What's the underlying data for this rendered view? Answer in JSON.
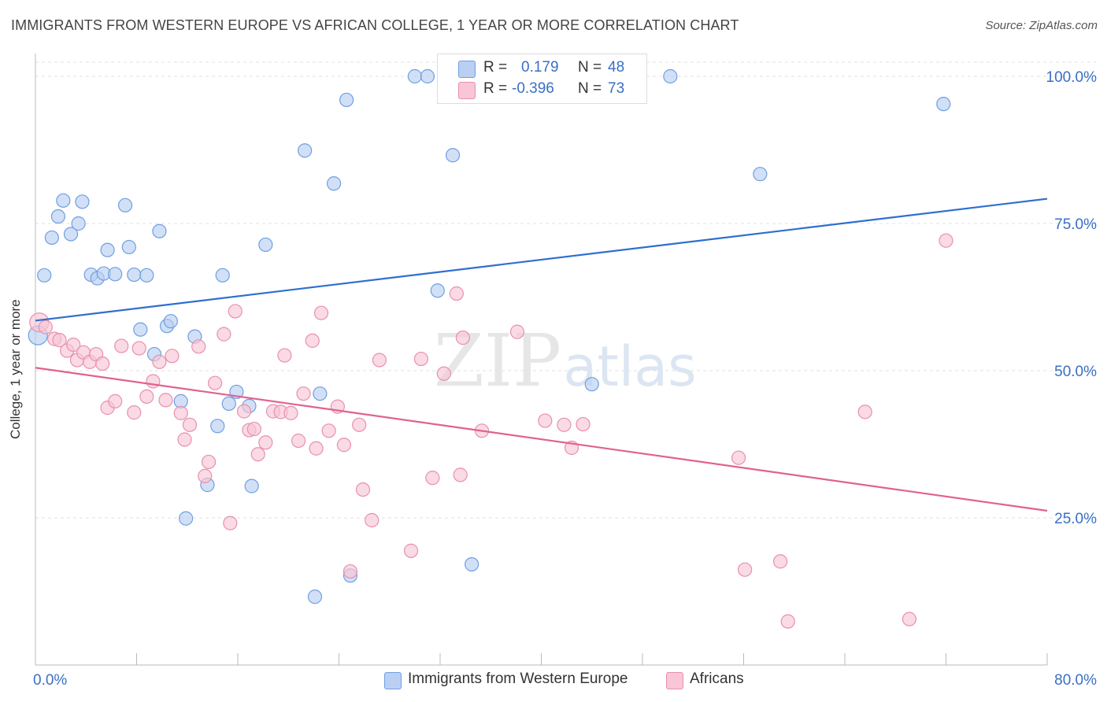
{
  "title": "IMMIGRANTS FROM WESTERN EUROPE VS AFRICAN COLLEGE, 1 YEAR OR MORE CORRELATION CHART",
  "source": "Source: ZipAtlas.com",
  "watermark": {
    "zip": "ZIP",
    "atlas": "atlas"
  },
  "legend": {
    "r_label": "R =",
    "n_label": "N =",
    "series": [
      {
        "r": "0.179",
        "n": "48"
      },
      {
        "r": "-0.396",
        "n": "73"
      }
    ]
  },
  "chart_data": {
    "type": "scatter",
    "title": "IMMIGRANTS FROM WESTERN EUROPE VS AFRICAN COLLEGE, 1 YEAR OR MORE CORRELATION CHART",
    "xlabel": "",
    "ylabel": "College, 1 year or more",
    "xlim": [
      0,
      80
    ],
    "ylim": [
      0,
      105
    ],
    "x_tick_labels": [
      "0.0%",
      "80.0%"
    ],
    "y_ticks": [
      25,
      50,
      75,
      100
    ],
    "y_tick_labels": [
      "25.0%",
      "50.0%",
      "75.0%",
      "100.0%"
    ],
    "grid": true,
    "series": [
      {
        "name": "Immigrants from Western Europe",
        "color": "#6f9fe0",
        "fill": "#b9d0f3",
        "line_color": "#2e6fd0",
        "trend": [
          [
            0,
            58.5
          ],
          [
            80,
            79.2
          ]
        ],
        "points": [
          [
            0.2,
            56.0
          ],
          [
            0.7,
            66.2
          ],
          [
            1.3,
            72.6
          ],
          [
            1.8,
            76.2
          ],
          [
            2.2,
            78.9
          ],
          [
            2.8,
            73.2
          ],
          [
            3.4,
            75.0
          ],
          [
            3.7,
            78.7
          ],
          [
            4.4,
            66.3
          ],
          [
            4.9,
            65.7
          ],
          [
            5.4,
            66.5
          ],
          [
            5.7,
            70.5
          ],
          [
            6.3,
            66.4
          ],
          [
            7.1,
            78.1
          ],
          [
            7.4,
            71.0
          ],
          [
            7.8,
            66.3
          ],
          [
            8.3,
            57.0
          ],
          [
            8.8,
            66.2
          ],
          [
            9.4,
            52.8
          ],
          [
            9.8,
            73.7
          ],
          [
            10.4,
            57.6
          ],
          [
            10.7,
            58.4
          ],
          [
            11.5,
            44.8
          ],
          [
            11.9,
            24.9
          ],
          [
            12.6,
            55.8
          ],
          [
            13.6,
            30.6
          ],
          [
            14.4,
            40.6
          ],
          [
            14.8,
            66.2
          ],
          [
            15.3,
            44.4
          ],
          [
            15.9,
            46.4
          ],
          [
            16.9,
            44.0
          ],
          [
            17.1,
            30.4
          ],
          [
            18.2,
            71.4
          ],
          [
            21.3,
            87.4
          ],
          [
            22.1,
            11.6
          ],
          [
            22.5,
            46.1
          ],
          [
            23.6,
            81.8
          ],
          [
            24.6,
            96.0
          ],
          [
            24.9,
            15.2
          ],
          [
            30.0,
            100.0
          ],
          [
            31.0,
            100.0
          ],
          [
            31.8,
            63.6
          ],
          [
            33.0,
            86.6
          ],
          [
            34.5,
            17.1
          ],
          [
            44.0,
            47.7
          ],
          [
            50.2,
            100.0
          ],
          [
            57.3,
            83.4
          ],
          [
            71.8,
            95.3
          ]
        ]
      },
      {
        "name": "Africans",
        "color": "#e890ad",
        "fill": "#f8c6d6",
        "line_color": "#e0628f",
        "trend": [
          [
            0,
            50.5
          ],
          [
            80,
            26.2
          ]
        ],
        "points": [
          [
            0.3,
            58.2
          ],
          [
            0.8,
            57.4
          ],
          [
            1.5,
            55.4
          ],
          [
            1.9,
            55.2
          ],
          [
            2.5,
            53.4
          ],
          [
            3.0,
            54.4
          ],
          [
            3.3,
            51.8
          ],
          [
            3.8,
            53.1
          ],
          [
            4.3,
            51.5
          ],
          [
            4.8,
            52.8
          ],
          [
            5.3,
            51.2
          ],
          [
            5.7,
            43.7
          ],
          [
            6.3,
            44.8
          ],
          [
            6.8,
            54.2
          ],
          [
            7.8,
            42.9
          ],
          [
            8.2,
            53.8
          ],
          [
            8.8,
            45.6
          ],
          [
            9.3,
            48.2
          ],
          [
            9.8,
            51.5
          ],
          [
            10.3,
            45.0
          ],
          [
            10.8,
            52.5
          ],
          [
            11.5,
            42.8
          ],
          [
            11.8,
            38.3
          ],
          [
            12.2,
            40.8
          ],
          [
            12.9,
            54.1
          ],
          [
            13.4,
            32.1
          ],
          [
            13.7,
            34.5
          ],
          [
            14.2,
            47.9
          ],
          [
            14.9,
            56.2
          ],
          [
            15.4,
            24.1
          ],
          [
            15.8,
            60.1
          ],
          [
            16.5,
            43.1
          ],
          [
            16.9,
            39.9
          ],
          [
            17.3,
            40.1
          ],
          [
            17.6,
            35.8
          ],
          [
            18.2,
            37.8
          ],
          [
            18.8,
            43.1
          ],
          [
            19.4,
            43.0
          ],
          [
            19.7,
            52.6
          ],
          [
            20.2,
            42.8
          ],
          [
            20.8,
            38.1
          ],
          [
            21.2,
            46.1
          ],
          [
            21.9,
            55.1
          ],
          [
            22.2,
            36.8
          ],
          [
            22.6,
            59.8
          ],
          [
            23.2,
            39.8
          ],
          [
            23.9,
            43.9
          ],
          [
            24.4,
            37.4
          ],
          [
            24.9,
            15.9
          ],
          [
            25.6,
            40.8
          ],
          [
            25.9,
            29.8
          ],
          [
            26.6,
            24.6
          ],
          [
            27.2,
            51.8
          ],
          [
            29.7,
            19.4
          ],
          [
            30.5,
            52.0
          ],
          [
            31.4,
            31.8
          ],
          [
            32.3,
            49.5
          ],
          [
            33.3,
            63.1
          ],
          [
            33.6,
            32.3
          ],
          [
            33.8,
            55.6
          ],
          [
            35.3,
            39.8
          ],
          [
            38.1,
            56.6
          ],
          [
            40.3,
            41.5
          ],
          [
            41.8,
            40.8
          ],
          [
            42.4,
            36.9
          ],
          [
            43.3,
            40.9
          ],
          [
            55.6,
            35.2
          ],
          [
            56.1,
            16.2
          ],
          [
            58.9,
            17.6
          ],
          [
            59.5,
            7.4
          ],
          [
            65.6,
            43.0
          ],
          [
            69.1,
            7.8
          ],
          [
            72.0,
            72.1
          ]
        ]
      }
    ]
  }
}
